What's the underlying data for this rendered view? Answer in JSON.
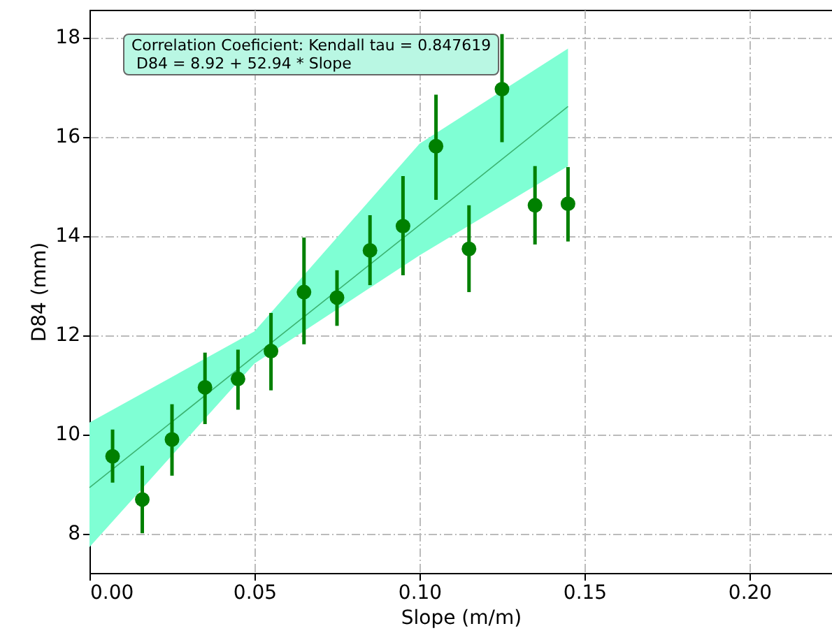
{
  "chart_data": {
    "type": "scatter",
    "xlabel": "Slope (m/m)",
    "ylabel": "D84 (mm)",
    "annotations": [
      "Correlation Coeficient: Kendall tau = 0.847619",
      "D84 = 8.92 + 52.94 * Slope"
    ],
    "xlim": [
      0,
      0.225
    ],
    "ylim": [
      7.2,
      18.55
    ],
    "xticks": [
      {
        "value": 0,
        "label": "0.00"
      },
      {
        "value": 0.05,
        "label": "0.05"
      },
      {
        "value": 0.1,
        "label": "0.10"
      },
      {
        "value": 0.15,
        "label": "0.15"
      },
      {
        "value": 0.2,
        "label": "0.20"
      }
    ],
    "yticks": [
      8,
      10,
      12,
      14,
      16,
      18
    ],
    "grid": true,
    "marker": "circle",
    "series": [
      {
        "type": "line",
        "marker": "none",
        "color": "#3cb371",
        "x": [
          0,
          0.05,
          0.1,
          0.145
        ],
        "values": [
          8.92,
          11.57,
          14.21,
          16.6
        ],
        "lower": [
          7.72,
          11.42,
          13.6,
          15.4
        ],
        "upper": [
          10.23,
          12.07,
          15.85,
          17.77
        ]
      },
      {
        "type": "scatter",
        "color": "#008000",
        "x": [
          0.007,
          0.016,
          0.025,
          0.035,
          0.045,
          0.055,
          0.065,
          0.075,
          0.085,
          0.095,
          0.105,
          0.115,
          0.125,
          0.135,
          0.145
        ],
        "values": [
          9.55,
          8.68,
          9.89,
          10.94,
          11.11,
          11.67,
          12.86,
          12.75,
          13.7,
          14.19,
          15.8,
          13.73,
          16.95,
          14.61,
          14.64
        ],
        "errors": [
          [
            9.02,
            10.09
          ],
          [
            8.0,
            9.36
          ],
          [
            9.16,
            10.6
          ],
          [
            10.2,
            11.64
          ],
          [
            10.49,
            11.7
          ],
          [
            10.88,
            12.44
          ],
          [
            11.81,
            13.96
          ],
          [
            12.18,
            13.3
          ],
          [
            13.0,
            14.41
          ],
          [
            13.2,
            15.2
          ],
          [
            14.72,
            16.84
          ],
          [
            12.86,
            14.61
          ],
          [
            15.88,
            18.06
          ],
          [
            13.82,
            15.4
          ],
          [
            13.88,
            15.38
          ]
        ]
      }
    ]
  }
}
